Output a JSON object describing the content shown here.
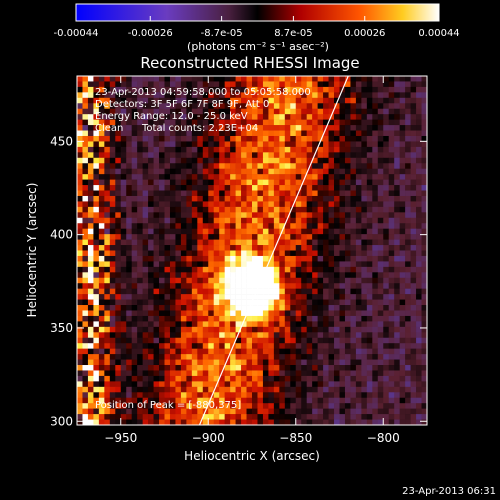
{
  "colorbar": {
    "tick_labels": [
      "-0.00044",
      "-0.00026",
      "-8.7e-05",
      "8.7e-05",
      "0.00026",
      "0.00044"
    ],
    "unit_label": "(photons cm⁻² s⁻¹ asec⁻²)",
    "range": [
      -0.00044,
      0.00044
    ]
  },
  "overlay": {
    "time_range": "23-Apr-2013 04:59:58.000 to 05:05:58.000",
    "detectors": "Detectors: 3F 5F 6F 7F 8F 9F, Att 0",
    "energy": "Energy Range: 12.0 - 25.0 keV",
    "clean": "Clean",
    "counts": "Total counts: 2.23E+04",
    "peak": "Position of Peak = [-880,375]"
  },
  "footer": {
    "timestamp": "23-Apr-2013 06:31"
  },
  "chart_data": {
    "type": "heatmap",
    "title": "Reconstructed RHESSI Image",
    "xlabel": "Heliocentric X (arcsec)",
    "ylabel": "Heliocentric Y (arcsec)",
    "xlim": [
      -975,
      -775
    ],
    "ylim": [
      298,
      485
    ],
    "x_ticks": [
      -950,
      -900,
      -850,
      -800
    ],
    "y_ticks": [
      300,
      350,
      400,
      450
    ],
    "peak": [
      -880,
      375
    ],
    "limb_line": [
      [
        -905,
        298
      ],
      [
        -820,
        485
      ]
    ],
    "colors": [
      "#0000ff",
      "#5a3da8",
      "#5a2030",
      "#000000",
      "#cc1000",
      "#ff6a00",
      "#ffee40",
      "#ffffff"
    ]
  }
}
